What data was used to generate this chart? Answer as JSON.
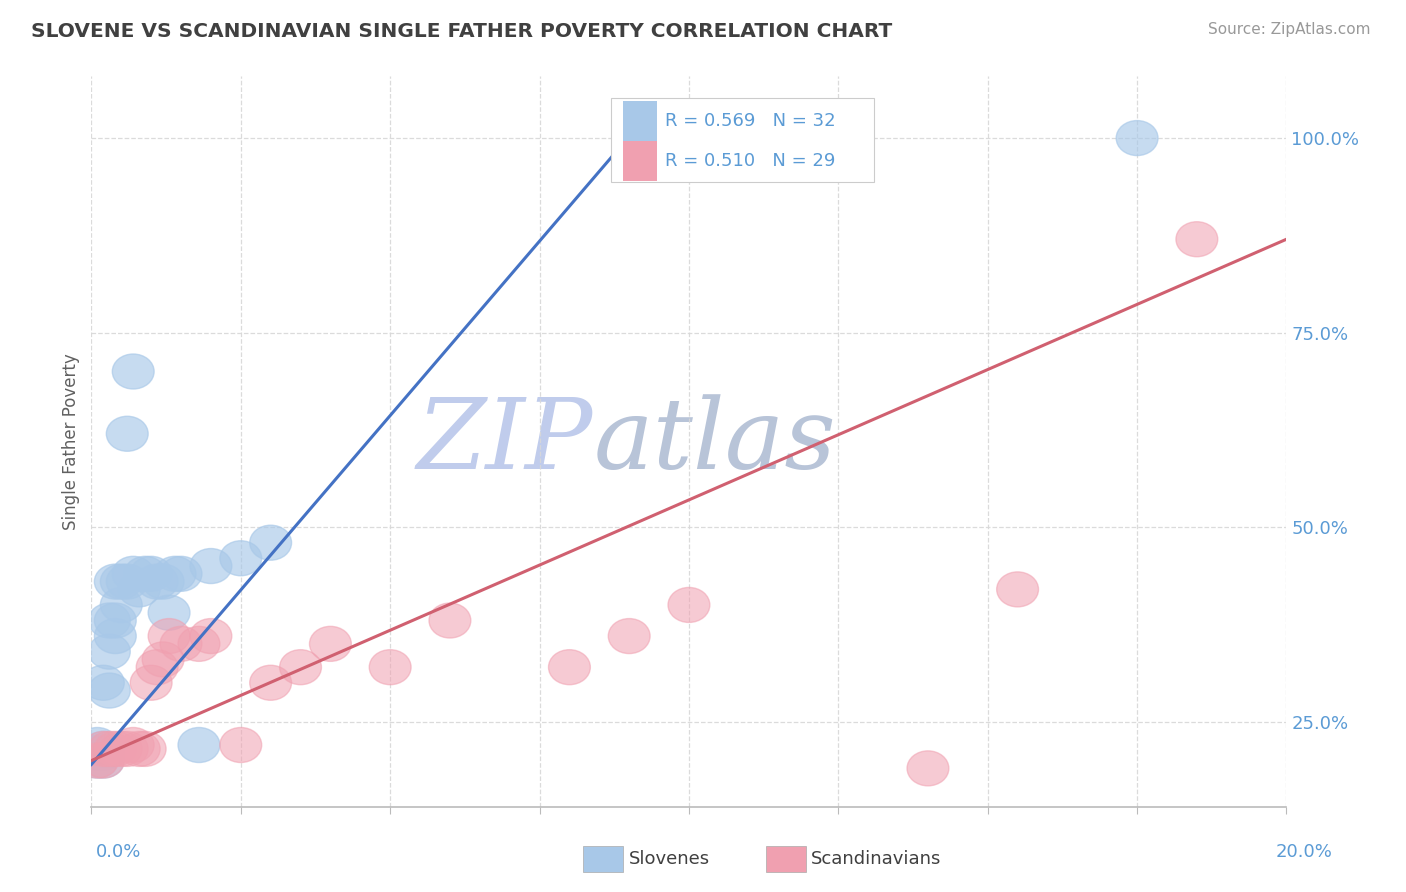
{
  "title": "SLOVENE VS SCANDINAVIAN SINGLE FATHER POVERTY CORRELATION CHART",
  "source_text": "Source: ZipAtlas.com",
  "ylabel": "Single Father Poverty",
  "legend_label1": "Slovenes",
  "legend_label2": "Scandinavians",
  "R1": 0.569,
  "N1": 32,
  "R2": 0.51,
  "N2": 29,
  "xlim": [
    0.0,
    0.2
  ],
  "ylim": [
    0.14,
    1.08
  ],
  "yticks": [
    0.25,
    0.5,
    0.75,
    1.0
  ],
  "ytick_labels": [
    "25.0%",
    "50.0%",
    "75.0%",
    "100.0%"
  ],
  "blue_color": "#a8c8e8",
  "pink_color": "#f0a0b0",
  "blue_line_color": "#4472c4",
  "pink_line_color": "#d06070",
  "watermark_zip_color": "#c8d8f0",
  "watermark_atlas_color": "#c0c8d8",
  "title_color": "#404040",
  "axis_label_color": "#5b9bd5",
  "grid_color": "#d8d8d8",
  "slovene_x": [
    0.001,
    0.001,
    0.001,
    0.002,
    0.002,
    0.002,
    0.002,
    0.003,
    0.003,
    0.003,
    0.004,
    0.004,
    0.004,
    0.005,
    0.005,
    0.006,
    0.006,
    0.007,
    0.007,
    0.008,
    0.009,
    0.01,
    0.011,
    0.012,
    0.013,
    0.014,
    0.015,
    0.018,
    0.02,
    0.025,
    0.03,
    0.175
  ],
  "slovene_y": [
    0.2,
    0.21,
    0.22,
    0.2,
    0.21,
    0.215,
    0.3,
    0.34,
    0.38,
    0.29,
    0.43,
    0.36,
    0.38,
    0.4,
    0.43,
    0.43,
    0.62,
    0.7,
    0.44,
    0.42,
    0.44,
    0.44,
    0.43,
    0.43,
    0.39,
    0.44,
    0.44,
    0.22,
    0.45,
    0.46,
    0.48,
    1.0
  ],
  "scandi_x": [
    0.001,
    0.002,
    0.002,
    0.003,
    0.004,
    0.005,
    0.006,
    0.007,
    0.008,
    0.009,
    0.01,
    0.011,
    0.012,
    0.013,
    0.015,
    0.018,
    0.02,
    0.025,
    0.03,
    0.035,
    0.04,
    0.05,
    0.06,
    0.08,
    0.09,
    0.1,
    0.14,
    0.155,
    0.185
  ],
  "scandi_y": [
    0.2,
    0.2,
    0.215,
    0.215,
    0.215,
    0.215,
    0.215,
    0.22,
    0.215,
    0.215,
    0.3,
    0.32,
    0.33,
    0.36,
    0.35,
    0.35,
    0.36,
    0.22,
    0.3,
    0.32,
    0.35,
    0.32,
    0.38,
    0.32,
    0.36,
    0.4,
    0.19,
    0.42,
    0.87
  ],
  "blue_line_x": [
    0.0,
    0.092
  ],
  "blue_line_y": [
    0.195,
    1.02
  ],
  "pink_line_x": [
    0.0,
    0.2
  ],
  "pink_line_y": [
    0.2,
    0.87
  ]
}
